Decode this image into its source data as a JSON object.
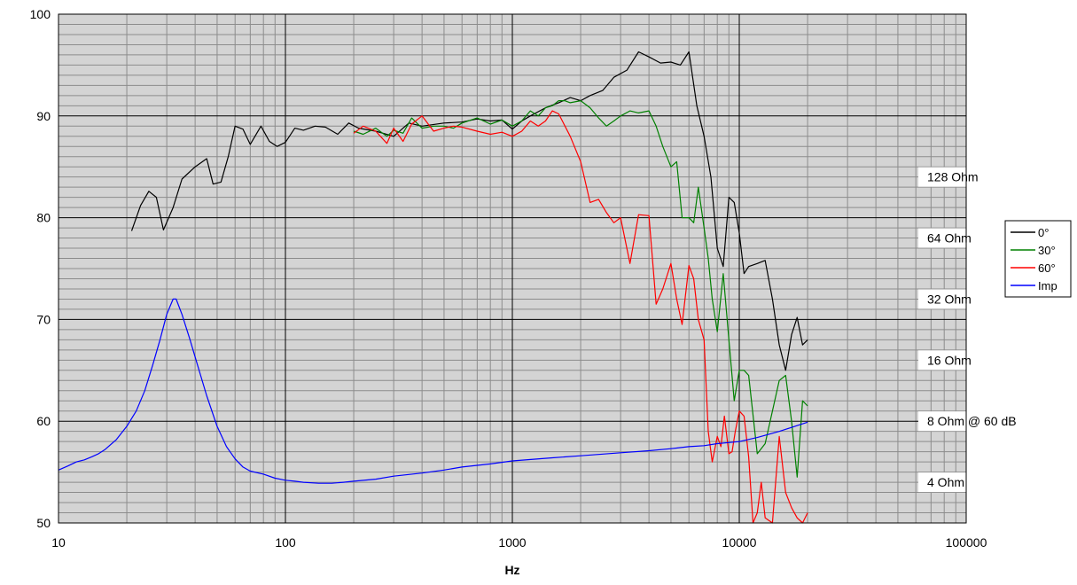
{
  "chart_data": {
    "type": "line",
    "xscale": "log",
    "xlim": [
      10,
      100000
    ],
    "ylim": [
      50,
      100
    ],
    "xlabel": "Hz",
    "ylabel": "",
    "grid": true,
    "legend_position": "right",
    "background": "#d4d4d4",
    "x_tick_labels": [
      "10",
      "100",
      "1000",
      "10000",
      "100000"
    ],
    "y_tick_labels": [
      "50",
      "60",
      "70",
      "80",
      "90",
      "100"
    ],
    "annotations": [
      {
        "text": "128 Ohm",
        "y": 84
      },
      {
        "text": "64 Ohm",
        "y": 78
      },
      {
        "text": "32 Ohm",
        "y": 72
      },
      {
        "text": "16 Ohm",
        "y": 66
      },
      {
        "text": "8 Ohm @ 60 dB",
        "y": 60
      },
      {
        "text": "4 Ohm",
        "y": 54
      }
    ],
    "series": [
      {
        "name": "0°",
        "color": "#000000",
        "x": [
          21,
          23,
          25,
          27,
          29,
          32,
          35,
          40,
          45,
          48,
          52,
          56,
          60,
          65,
          70,
          78,
          85,
          92,
          100,
          110,
          120,
          135,
          150,
          170,
          190,
          210,
          250,
          300,
          350,
          400,
          500,
          600,
          700,
          800,
          900,
          1000,
          1100,
          1200,
          1400,
          1600,
          1800,
          2000,
          2200,
          2500,
          2800,
          3200,
          3600,
          4000,
          4500,
          5000,
          5500,
          6000,
          6500,
          7000,
          7500,
          8000,
          8500,
          9000,
          9500,
          10000,
          10500,
          11000,
          12000,
          13000,
          14000,
          15000,
          16000,
          17000,
          18000,
          19000,
          20000
        ],
        "values": [
          78.7,
          81.2,
          82.6,
          82.0,
          78.8,
          81.0,
          83.8,
          85.0,
          85.8,
          83.3,
          83.5,
          86.0,
          89.0,
          88.7,
          87.2,
          89.0,
          87.5,
          87.0,
          87.4,
          88.8,
          88.6,
          89.0,
          88.9,
          88.2,
          89.3,
          88.8,
          88.5,
          88.0,
          89.3,
          89.0,
          89.3,
          89.4,
          89.7,
          89.5,
          89.6,
          88.7,
          89.5,
          90.0,
          90.8,
          91.3,
          91.8,
          91.5,
          92.0,
          92.5,
          93.8,
          94.5,
          96.3,
          95.8,
          95.2,
          95.3,
          95.0,
          96.3,
          91.0,
          88.0,
          84.0,
          77.0,
          75.2,
          82.0,
          81.5,
          78.5,
          74.5,
          75.2,
          75.5,
          75.8,
          72.0,
          67.5,
          65.0,
          68.5,
          70.2,
          67.5,
          68.0
        ]
      },
      {
        "name": "30°",
        "color": "#008000",
        "x": [
          200,
          220,
          250,
          280,
          300,
          330,
          360,
          400,
          450,
          500,
          550,
          600,
          700,
          800,
          900,
          1000,
          1100,
          1200,
          1300,
          1400,
          1500,
          1600,
          1700,
          1800,
          2000,
          2200,
          2400,
          2600,
          2800,
          3000,
          3300,
          3600,
          4000,
          4300,
          4600,
          5000,
          5300,
          5600,
          6000,
          6300,
          6600,
          7000,
          7300,
          7600,
          8000,
          8500,
          9000,
          9500,
          10000,
          10500,
          11000,
          12000,
          13000,
          14000,
          15000,
          16000,
          17000,
          18000,
          19000,
          20000
        ],
        "values": [
          88.5,
          88.2,
          88.8,
          88.0,
          88.6,
          88.3,
          89.8,
          88.8,
          89.0,
          89.0,
          88.8,
          89.3,
          89.8,
          89.2,
          89.6,
          89.0,
          89.5,
          90.5,
          90.0,
          90.8,
          91.0,
          91.5,
          91.5,
          91.3,
          91.5,
          90.8,
          89.8,
          89.0,
          89.5,
          90.0,
          90.5,
          90.3,
          90.5,
          89.0,
          87.0,
          85.0,
          85.5,
          80.0,
          80.0,
          79.5,
          83.0,
          79.0,
          76.0,
          72.0,
          68.8,
          74.5,
          68.0,
          62.0,
          65.0,
          65.0,
          64.5,
          56.8,
          57.8,
          61.0,
          64.0,
          64.5,
          60.0,
          54.5,
          62.0,
          61.5
        ]
      },
      {
        "name": "60°",
        "color": "#ff0000",
        "x": [
          200,
          220,
          250,
          280,
          300,
          330,
          360,
          400,
          450,
          500,
          550,
          600,
          700,
          800,
          900,
          1000,
          1100,
          1200,
          1300,
          1400,
          1500,
          1600,
          1800,
          2000,
          2200,
          2400,
          2600,
          2800,
          3000,
          3300,
          3600,
          4000,
          4300,
          4600,
          5000,
          5300,
          5600,
          6000,
          6300,
          6600,
          7000,
          7300,
          7600,
          8000,
          8300,
          8600,
          9000,
          9300,
          9600,
          10000,
          10500,
          11000,
          11500,
          12000,
          12500,
          13000,
          14000,
          15000,
          16000,
          17000,
          18000,
          19000,
          20000
        ],
        "values": [
          88.3,
          89.0,
          88.5,
          87.3,
          88.8,
          87.5,
          89.2,
          90.0,
          88.5,
          88.8,
          89.0,
          88.9,
          88.5,
          88.2,
          88.4,
          88.0,
          88.5,
          89.5,
          89.0,
          89.5,
          90.5,
          90.2,
          88.0,
          85.5,
          81.5,
          81.8,
          80.5,
          79.5,
          80.0,
          75.5,
          80.3,
          80.2,
          71.5,
          73.0,
          75.5,
          72.0,
          69.5,
          75.3,
          74.0,
          70.0,
          68.0,
          59.0,
          56.0,
          58.5,
          57.5,
          60.5,
          56.8,
          57.0,
          59.0,
          61.0,
          60.5,
          56.5,
          50.0,
          51.0,
          54.0,
          50.5,
          50.0,
          58.5,
          53.0,
          51.5,
          50.5,
          50.0,
          51.0
        ]
      },
      {
        "name": "Imp",
        "color": "#0000ff",
        "x": [
          10,
          11,
          12,
          13,
          14,
          15,
          16,
          18,
          20,
          22,
          24,
          26,
          28,
          30,
          32,
          33,
          35,
          38,
          41,
          45,
          50,
          55,
          60,
          65,
          70,
          80,
          90,
          100,
          110,
          120,
          140,
          160,
          180,
          200,
          250,
          300,
          400,
          500,
          600,
          800,
          1000,
          1500,
          2000,
          3000,
          4000,
          5000,
          6000,
          7000,
          8000,
          10000,
          12000,
          15000,
          20000
        ],
        "values": [
          55.2,
          55.6,
          56.0,
          56.2,
          56.5,
          56.8,
          57.2,
          58.2,
          59.5,
          61.0,
          63.0,
          65.5,
          68.0,
          70.5,
          72.0,
          72.0,
          70.5,
          68.0,
          65.5,
          62.5,
          59.5,
          57.5,
          56.3,
          55.5,
          55.1,
          54.8,
          54.4,
          54.2,
          54.1,
          54.0,
          53.9,
          53.9,
          54.0,
          54.1,
          54.3,
          54.6,
          54.9,
          55.2,
          55.5,
          55.8,
          56.1,
          56.4,
          56.6,
          56.9,
          57.1,
          57.3,
          57.5,
          57.6,
          57.8,
          58.0,
          58.4,
          59.0,
          59.9
        ]
      }
    ]
  }
}
